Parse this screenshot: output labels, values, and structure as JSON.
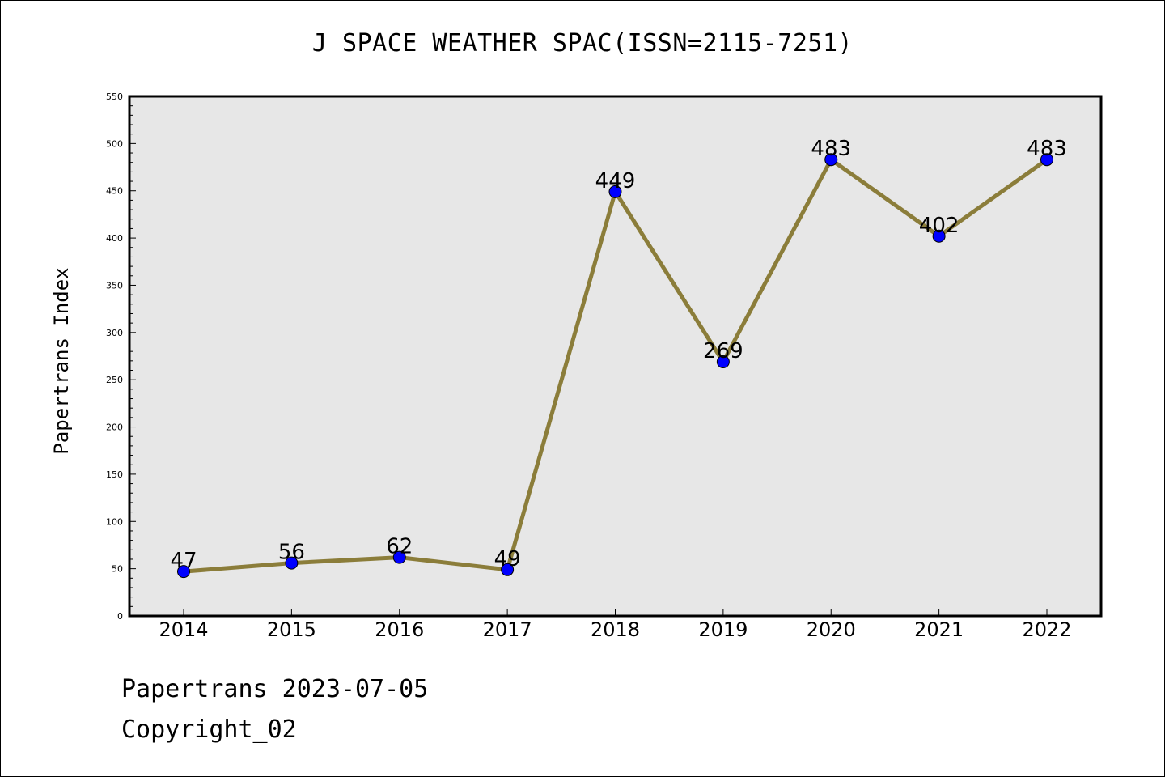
{
  "chart_data": {
    "type": "line",
    "title": "J SPACE WEATHER SPAC(ISSN=2115-7251)",
    "xlabel": "",
    "ylabel": "Papertrans Index",
    "categories": [
      "2014",
      "2015",
      "2016",
      "2017",
      "2018",
      "2019",
      "2020",
      "2021",
      "2022"
    ],
    "series": [
      {
        "values": [
          47,
          56,
          62,
          49,
          449,
          269,
          483,
          402,
          483
        ]
      }
    ],
    "data_labels": [
      "47",
      "56",
      "62",
      "49",
      "449",
      "269",
      "483",
      "402",
      "483"
    ],
    "ylim": [
      0,
      550
    ],
    "yticks": [
      0,
      50,
      100,
      150,
      200,
      250,
      300,
      350,
      400,
      450,
      500,
      550
    ],
    "ytick_labels": [
      "0",
      "50",
      "100",
      "150",
      "200",
      "250",
      "300",
      "350",
      "400",
      "450",
      "500",
      "550"
    ],
    "grid": false,
    "legend": "none",
    "colors": {
      "line": "#8b7d3a",
      "marker": "#0000ff",
      "plot_background": "#e7e7e7",
      "axes": "#000000"
    }
  },
  "footer": {
    "line1": "Papertrans 2023-07-05",
    "line2": "Copyright_02"
  }
}
